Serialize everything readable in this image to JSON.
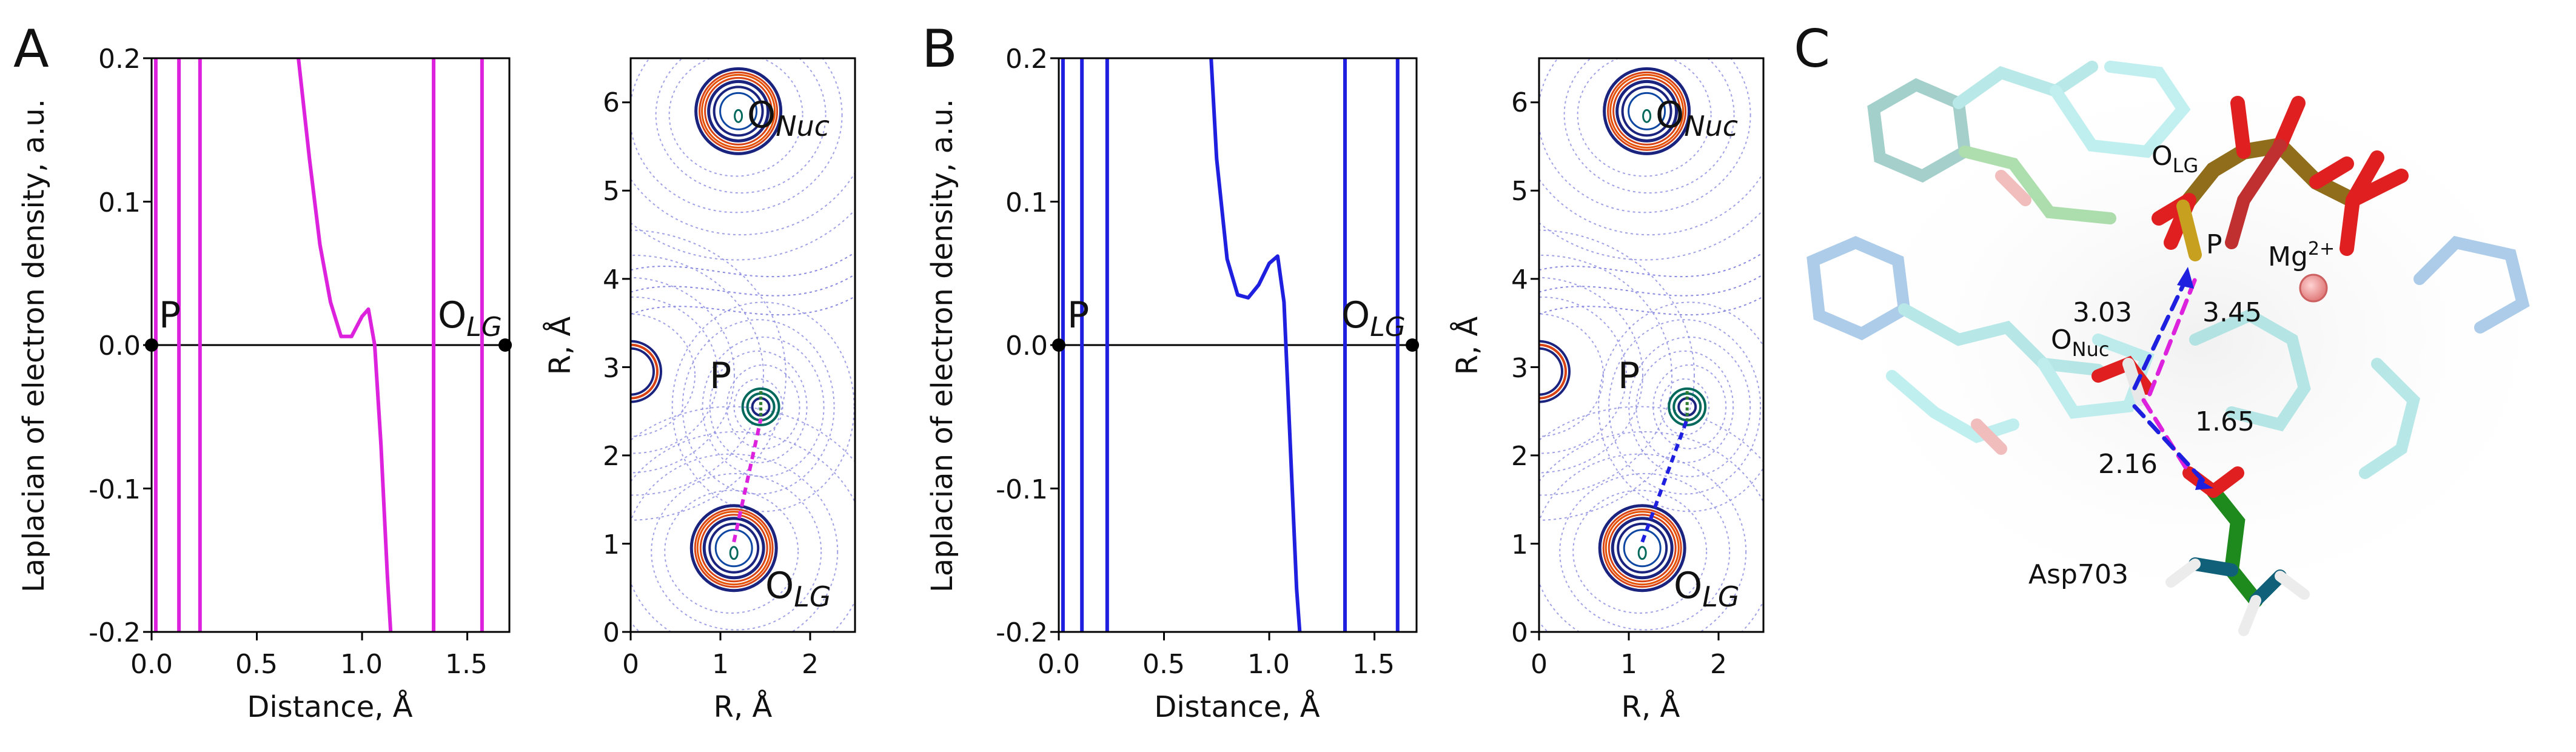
{
  "figure": {
    "panels": [
      "A",
      "B",
      "C"
    ]
  },
  "chart_data": [
    {
      "id": "A-laplacian",
      "type": "line",
      "panel": "A",
      "xlabel": "Distance, Å",
      "ylabel": "Laplacian of electron density, a.u.",
      "xlim": [
        0,
        1.7
      ],
      "ylim": [
        -0.2,
        0.2
      ],
      "xticks": [
        "0.0",
        "0.5",
        "1.0",
        "1.5"
      ],
      "yticks": [
        "0.2",
        "0.1",
        "0.0",
        "-0.1",
        "-0.2"
      ],
      "color": "#dd22dd",
      "series": [
        {
          "name": "profile",
          "x": [
            0.69,
            0.75,
            0.8,
            0.85,
            0.9,
            0.95,
            1.0,
            1.03,
            1.06,
            1.09,
            1.12,
            1.14
          ],
          "y": [
            0.21,
            0.13,
            0.07,
            0.03,
            0.006,
            0.006,
            0.02,
            0.025,
            0.0,
            -0.07,
            -0.16,
            -0.21
          ]
        }
      ],
      "vlines": [
        0.02,
        0.13,
        0.23,
        1.34,
        1.57
      ],
      "endpoints": [
        0.0,
        1.68
      ],
      "labels": {
        "start": "P",
        "end_main": "O",
        "end_sub": "LG"
      }
    },
    {
      "id": "A-contour",
      "type": "heatmap",
      "panel": "A",
      "xlabel": "R, Å",
      "ylabel": "R, Å",
      "xlim": [
        0,
        2.5
      ],
      "ylim": [
        0,
        6.5
      ],
      "xticks": [
        "0",
        "1",
        "2"
      ],
      "yticks": [
        "6",
        "5",
        "4",
        "3",
        "2",
        "1",
        "0"
      ],
      "bond_color": "#dd22dd",
      "atoms": [
        {
          "main": "O",
          "sub": "Nuc",
          "x": 1.2,
          "y": 5.9
        },
        {
          "main": "P",
          "sub": "",
          "x": 1.45,
          "y": 2.55
        },
        {
          "main": "O",
          "sub": "LG",
          "x": 1.15,
          "y": 0.95
        }
      ]
    },
    {
      "id": "B-laplacian",
      "type": "line",
      "panel": "B",
      "xlabel": "Distance, Å",
      "ylabel": "Laplacian of electron density, a.u.",
      "xlim": [
        0,
        1.7
      ],
      "ylim": [
        -0.2,
        0.2
      ],
      "xticks": [
        "0.0",
        "0.5",
        "1.0",
        "1.5"
      ],
      "yticks": [
        "0.2",
        "0.1",
        "0.0",
        "-0.1",
        "-0.2"
      ],
      "color": "#1f1fe0",
      "series": [
        {
          "name": "profile",
          "x": [
            0.72,
            0.75,
            0.8,
            0.85,
            0.9,
            0.95,
            1.0,
            1.04,
            1.07,
            1.1,
            1.13,
            1.15
          ],
          "y": [
            0.21,
            0.13,
            0.06,
            0.035,
            0.033,
            0.042,
            0.057,
            0.062,
            0.03,
            -0.07,
            -0.17,
            -0.21
          ]
        }
      ],
      "vlines": [
        0.02,
        0.11,
        0.23,
        1.36,
        1.61
      ],
      "endpoints": [
        0.0,
        1.68
      ],
      "labels": {
        "start": "P",
        "end_main": "O",
        "end_sub": "LG"
      }
    },
    {
      "id": "B-contour",
      "type": "heatmap",
      "panel": "B",
      "xlabel": "R, Å",
      "ylabel": "R, Å",
      "xlim": [
        0,
        2.5
      ],
      "ylim": [
        0,
        6.5
      ],
      "xticks": [
        "0",
        "1",
        "2"
      ],
      "yticks": [
        "6",
        "5",
        "4",
        "3",
        "2",
        "1",
        "0"
      ],
      "bond_color": "#1f1fe0",
      "atoms": [
        {
          "main": "O",
          "sub": "Nuc",
          "x": 1.2,
          "y": 5.9
        },
        {
          "main": "P",
          "sub": "",
          "x": 1.65,
          "y": 2.55
        },
        {
          "main": "O",
          "sub": "LG",
          "x": 1.15,
          "y": 0.95
        }
      ]
    }
  ],
  "molecule": {
    "labels": {
      "olg_main": "O",
      "olg_sub": "LG",
      "p": "P",
      "mg_main": "Mg",
      "mg_sup": "2+",
      "onuc_main": "O",
      "onuc_sub": "Nuc",
      "asp": "Asp703"
    },
    "distances": [
      "3.03",
      "3.45",
      "1.65",
      "2.16"
    ]
  }
}
